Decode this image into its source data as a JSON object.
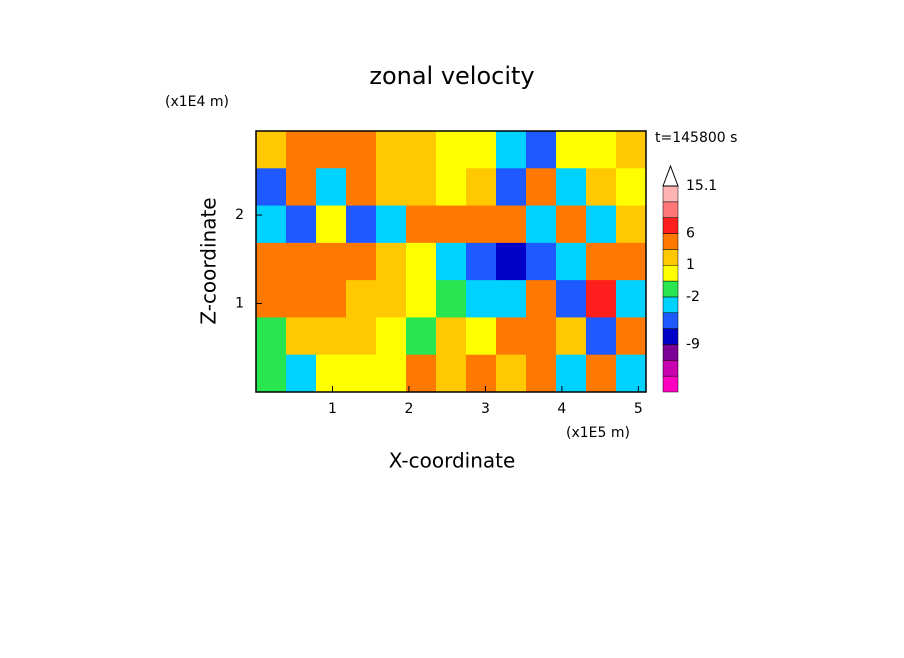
{
  "chart_data": {
    "type": "contour",
    "title": "zonal velocity",
    "xlabel": "X-coordinate",
    "ylabel": "Z-coordinate",
    "x_unit": "(x1E5 m)",
    "y_unit": "(x1E4 m)",
    "annotation": "t=145800 s",
    "xlim": [
      0,
      5.1
    ],
    "ylim": [
      0,
      2.95
    ],
    "xticks": [
      1,
      2,
      3,
      4,
      5
    ],
    "yticks": [
      1,
      2
    ],
    "z": [
      [
        2,
        4,
        5,
        3,
        1,
        1,
        0,
        0,
        -4,
        -6,
        -1,
        0,
        1
      ],
      [
        -6,
        3,
        -4,
        4,
        2,
        1,
        -1,
        2,
        -5,
        3,
        -3,
        2,
        0
      ],
      [
        -4,
        -6,
        0,
        -6,
        -4,
        4,
        3,
        5,
        4,
        -4,
        5,
        -3,
        2
      ],
      [
        4,
        5,
        4,
        4,
        1,
        -1,
        -3,
        -6,
        -9,
        -6,
        -3,
        5,
        4
      ],
      [
        4,
        3,
        3,
        2,
        1,
        -1,
        -2,
        -3,
        -4,
        3,
        -6,
        6,
        -4
      ],
      [
        -2,
        2,
        1,
        1,
        0,
        -2,
        2,
        -1,
        4,
        5,
        2,
        -5,
        3
      ],
      [
        -2,
        -4,
        -1,
        -1,
        0,
        3,
        2,
        3,
        1,
        4,
        -3,
        3,
        -4
      ]
    ],
    "colorbar": {
      "levels": [
        -18,
        -15,
        -12,
        -9,
        -6,
        -4,
        -2,
        -1,
        1,
        3,
        6,
        9,
        12,
        15.1
      ],
      "colors": [
        "#ff00c0",
        "#c800b0",
        "#7a0096",
        "#0000c8",
        "#1e5aff",
        "#00d2ff",
        "#28e650",
        "#ffff00",
        "#ffc800",
        "#ff7800",
        "#ff1e1e",
        "#ff7878",
        "#ffb4b4"
      ],
      "ticks": [
        -9,
        -2,
        1,
        6,
        15.1
      ]
    }
  }
}
